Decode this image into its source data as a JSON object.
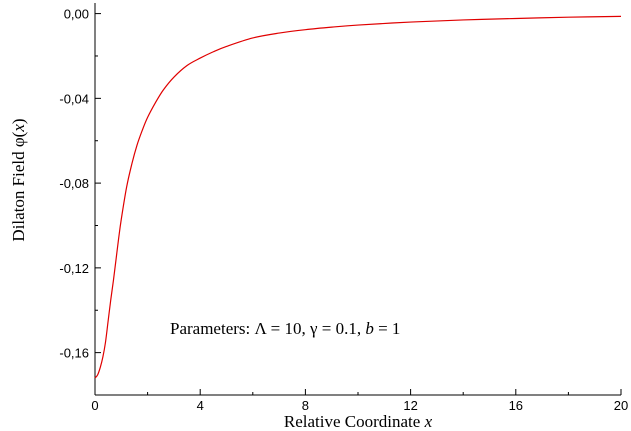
{
  "chart_data": {
    "type": "line",
    "xlabel": {
      "text": "Relative Coordinate ",
      "var": "x"
    },
    "ylabel": {
      "text": "Dilaton Field φ(",
      "var": "x",
      "close": ")"
    },
    "xlim": [
      0,
      20
    ],
    "ylim": [
      -0.18,
      0.005
    ],
    "x_ticks": [
      0,
      4,
      8,
      12,
      16,
      20
    ],
    "x_tick_labels": [
      "0",
      "4",
      "8",
      "12",
      "16",
      "20"
    ],
    "y_ticks": [
      0.0,
      -0.04,
      -0.08,
      -0.12,
      -0.16
    ],
    "y_tick_labels": [
      "0,00",
      "-0,04",
      "-0,08",
      "-0,12",
      "-0,16"
    ],
    "annotation": {
      "prefix": "Parameters: Λ = 10, γ = 0.1, ",
      "var": "b",
      "suffix": " = 1"
    },
    "series": [
      {
        "color": "#e00000",
        "x": [
          0,
          0.1,
          0.2,
          0.3,
          0.4,
          0.5,
          0.6,
          0.7,
          0.8,
          0.9,
          1.0,
          1.2,
          1.4,
          1.6,
          1.8,
          2.0,
          2.3,
          2.6,
          3.0,
          3.5,
          4.0,
          4.5,
          5.0,
          6.0,
          7.0,
          8.0,
          9.0,
          10.0,
          12.0,
          14.0,
          16.0,
          18.0,
          20.0
        ],
        "y": [
          -0.172,
          -0.1705,
          -0.167,
          -0.162,
          -0.155,
          -0.145,
          -0.135,
          -0.126,
          -0.116,
          -0.106,
          -0.097,
          -0.082,
          -0.071,
          -0.062,
          -0.055,
          -0.049,
          -0.042,
          -0.036,
          -0.03,
          -0.0245,
          -0.021,
          -0.018,
          -0.0155,
          -0.0115,
          -0.0092,
          -0.0076,
          -0.0064,
          -0.0054,
          -0.004,
          -0.003,
          -0.0023,
          -0.0017,
          -0.0013
        ]
      }
    ]
  }
}
